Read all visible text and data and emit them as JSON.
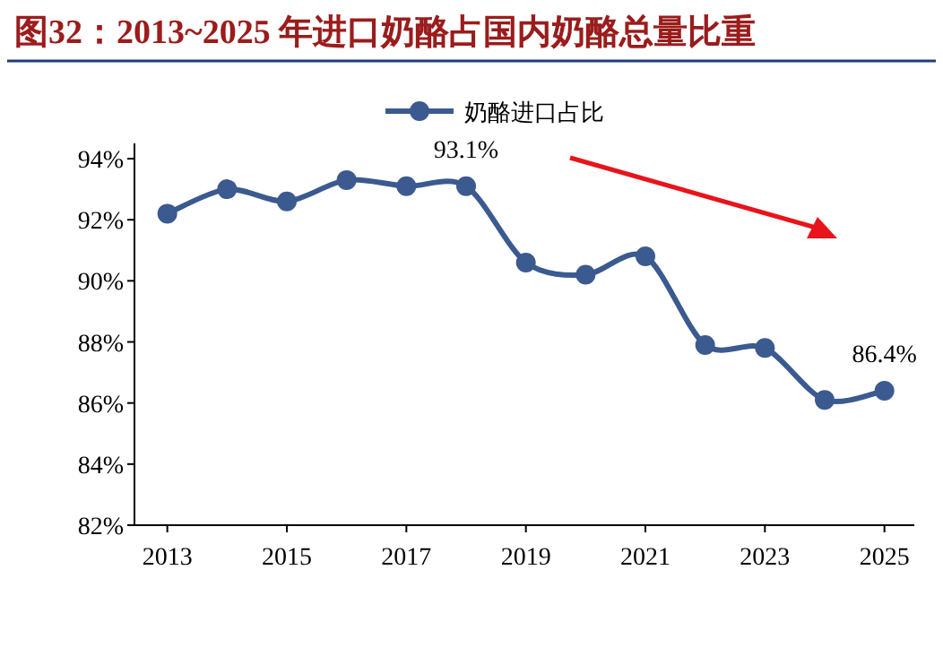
{
  "chart_data": {
    "type": "line",
    "title": "图32：2013~2025 年进口奶酪占国内奶酪总量比重",
    "x": [
      2013,
      2014,
      2015,
      2016,
      2017,
      2018,
      2019,
      2020,
      2021,
      2022,
      2023,
      2024,
      2025
    ],
    "series": [
      {
        "name": "奶酪进口占比",
        "color": "#3b5a8f",
        "values": [
          92.2,
          93.0,
          92.6,
          93.3,
          93.1,
          93.1,
          90.6,
          90.2,
          90.8,
          87.9,
          87.8,
          86.1,
          86.4
        ],
        "value_labels": [
          null,
          null,
          null,
          null,
          null,
          "93.1%",
          null,
          null,
          null,
          null,
          null,
          null,
          "86.4%"
        ]
      }
    ],
    "xlim": [
      2012.45,
      2025.5
    ],
    "xticks": [
      2013,
      2015,
      2017,
      2019,
      2021,
      2023,
      2025
    ],
    "ylim": [
      82,
      94.5
    ],
    "yticks": [
      {
        "value": 82,
        "label": "82%"
      },
      {
        "value": 84,
        "label": "84%"
      },
      {
        "value": 86,
        "label": "86%"
      },
      {
        "value": 88,
        "label": "88%"
      },
      {
        "value": 90,
        "label": "90%"
      },
      {
        "value": 92,
        "label": "92%"
      },
      {
        "value": 94,
        "label": "94%"
      }
    ],
    "legend": "top",
    "marker": "circle",
    "line_style": "solid",
    "grid": false
  }
}
